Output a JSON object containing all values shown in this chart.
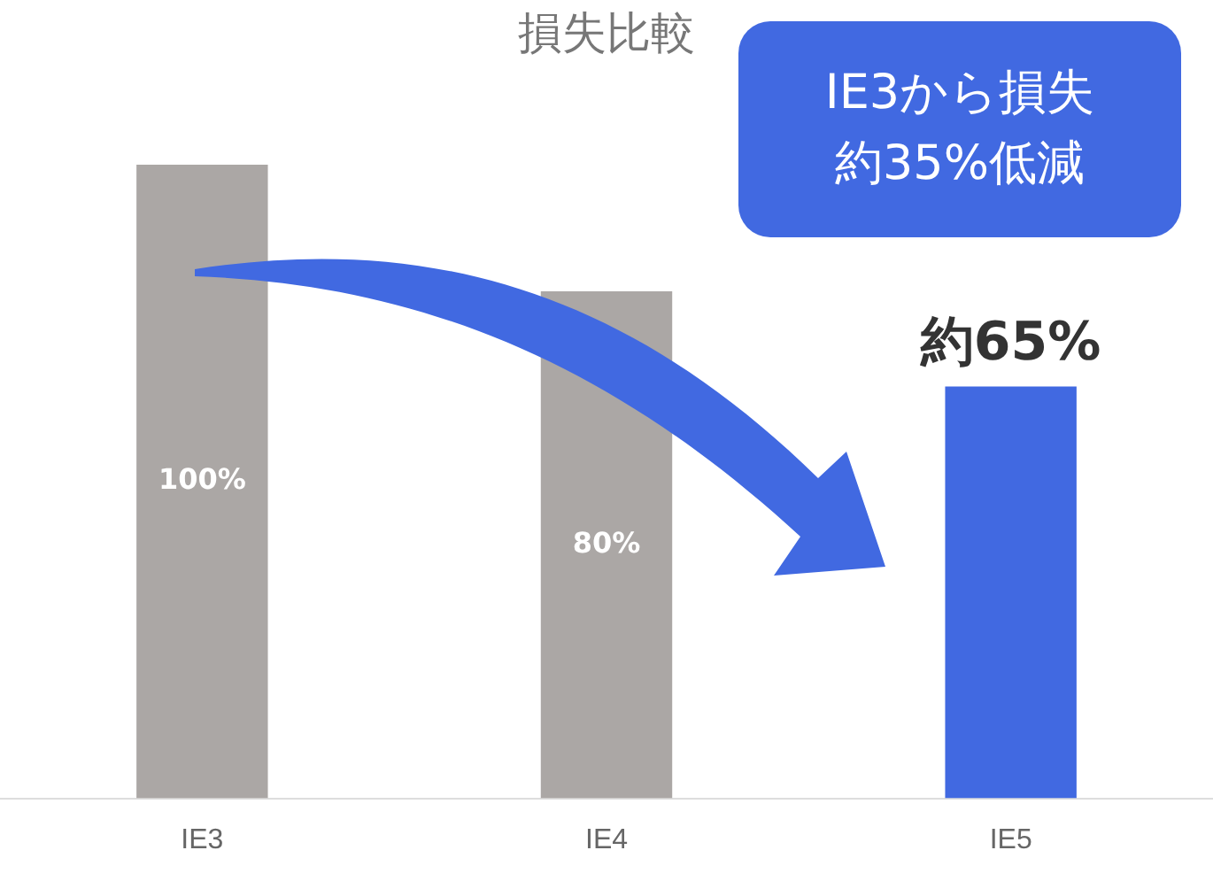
{
  "chart_data": {
    "type": "bar",
    "title": "損失比較",
    "categories": [
      "IE3",
      "IE4",
      "IE5"
    ],
    "values": [
      100,
      80,
      65
    ],
    "colors": [
      "#aba7a5",
      "#aba7a5",
      "#4169e1"
    ],
    "value_labels": [
      "100%",
      "80%",
      "約65%"
    ],
    "annotations": [
      "IE3から損失約35%低減"
    ],
    "grid": false,
    "legend": false
  }
}
